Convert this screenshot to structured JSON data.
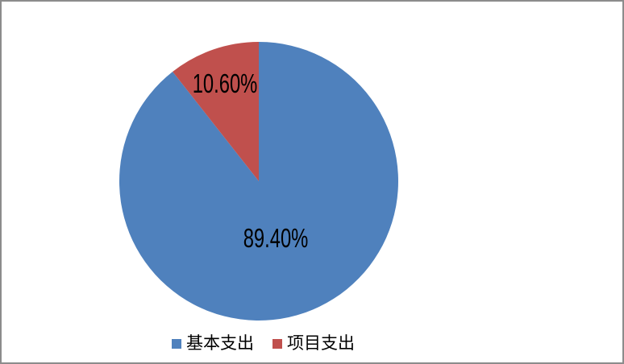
{
  "chart_data": {
    "type": "pie",
    "title": "",
    "start_angle_deg": 0,
    "direction": "clockwise",
    "legend_position": "bottom",
    "data_labels": "percent",
    "background_color": "#ffffff",
    "frame_border_color": "#8c8c8c",
    "label_text_color": "#000000",
    "slices": [
      {
        "label": "基本支出",
        "value": 89.4,
        "percent_label": "89.40%",
        "color": "#4f81bd"
      },
      {
        "label": "项目支出",
        "value": 10.6,
        "percent_label": "10.60%",
        "color": "#c0504d"
      }
    ]
  }
}
